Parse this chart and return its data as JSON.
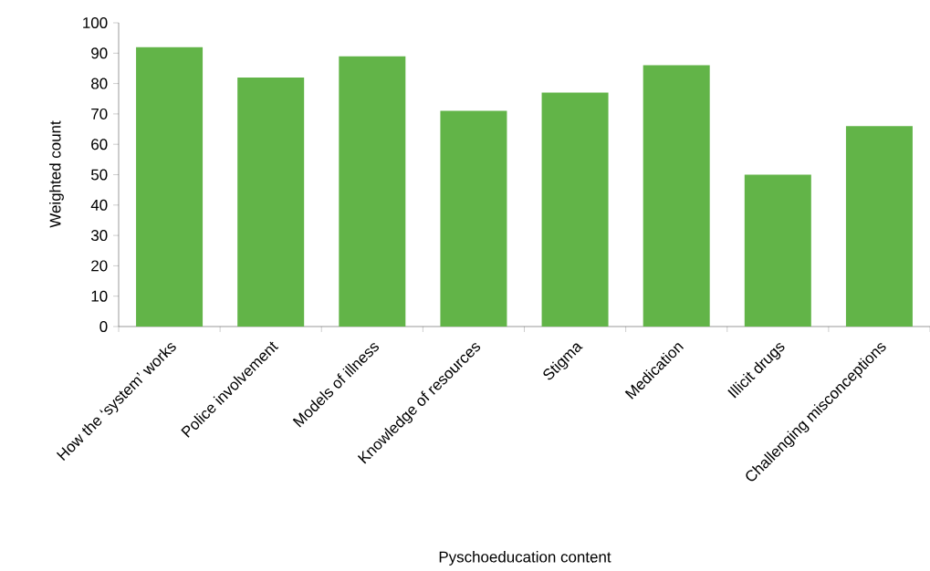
{
  "chart_data": {
    "type": "bar",
    "xlabel": "Pyschoeducation content",
    "ylabel": "Weighted count",
    "categories": [
      "How the ‘system’ works",
      "Police involvement",
      "Models of illness",
      "Knowledge of resources",
      "Stigma",
      "Medication",
      "Illicit drugs",
      "Challenging misconceptions"
    ],
    "values": [
      92,
      82,
      89,
      71,
      77,
      86,
      50,
      66
    ],
    "color": "#62b448",
    "ylim": [
      0,
      100
    ],
    "yticks": [
      0,
      10,
      20,
      30,
      40,
      50,
      60,
      70,
      80,
      90,
      100
    ],
    "grid": false
  }
}
